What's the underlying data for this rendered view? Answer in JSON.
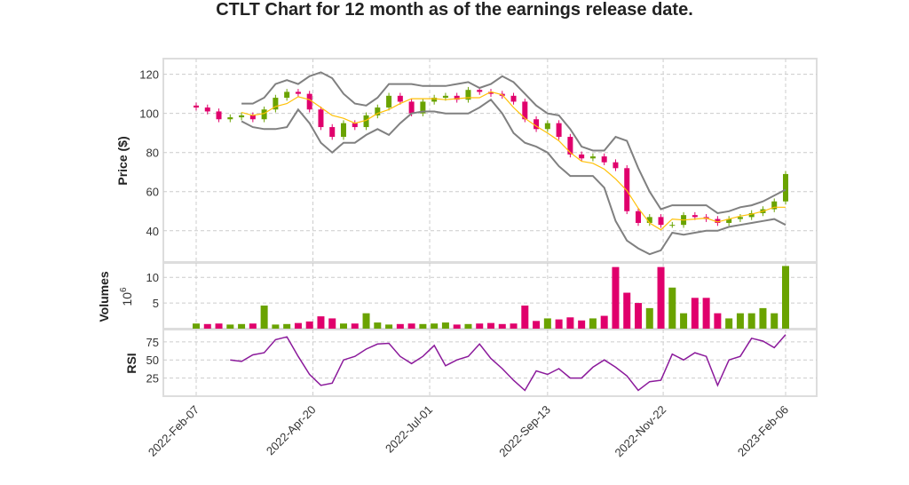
{
  "chart_data": {
    "type": "line",
    "title": "CTLT Chart for 12 month as of the earnings release date.",
    "xlabel": "",
    "x_ticks": [
      "2022-Feb-07",
      "2022-Apr-20",
      "2022-Jul-01",
      "2022-Sep-13",
      "2022-Nov-22",
      "2023-Feb-06"
    ],
    "x_tick_weeks": [
      0,
      10.3,
      20.6,
      31,
      41.2,
      52
    ],
    "price_panel": {
      "ylabel": "Price ($)",
      "ylim": [
        24,
        128
      ],
      "yticks": [
        "40",
        "60",
        "80",
        "100",
        "120"
      ],
      "close": [
        103,
        101,
        97,
        98,
        99,
        97,
        102,
        108,
        111,
        110,
        102,
        93,
        88,
        95,
        93,
        99,
        103,
        109,
        106,
        100,
        106,
        108,
        109,
        107,
        112,
        111,
        110,
        109,
        106,
        97,
        92,
        95,
        88,
        79,
        77,
        78,
        75,
        72,
        50,
        44,
        47,
        43,
        43,
        48,
        47,
        46,
        44,
        46,
        47,
        49,
        51,
        55,
        69
      ],
      "band_start_week": 4,
      "upper_band": [
        105,
        105,
        108,
        115,
        117,
        115,
        119,
        121,
        118,
        110,
        105,
        104,
        108,
        115,
        115,
        115,
        114,
        114,
        114,
        115,
        116,
        113,
        115,
        119,
        116,
        110,
        104,
        100,
        99,
        92,
        83,
        81,
        81,
        88,
        86,
        72,
        60,
        51,
        53,
        53,
        53,
        53,
        49,
        50,
        52,
        53,
        55,
        58,
        61
      ],
      "lower_band": [
        96,
        93,
        92,
        92,
        93,
        102,
        95,
        85,
        80,
        85,
        85,
        89,
        92,
        89,
        95,
        100,
        101,
        101,
        100,
        100,
        100,
        103,
        107,
        100,
        90,
        85,
        83,
        80,
        73,
        68,
        68,
        68,
        62,
        45,
        35,
        31,
        28,
        30,
        39,
        38,
        39,
        40,
        40,
        42,
        43,
        44,
        45,
        46,
        43
      ],
      "colors": {
        "up": "#6aa300",
        "down": "#e0006c",
        "band": "#808080",
        "sma": "#ffc107"
      }
    },
    "volume_panel": {
      "ylabel": "Volumes",
      "unit": "10",
      "unit_exp": "6",
      "yticks": [
        "5",
        "10"
      ],
      "ylim": [
        0,
        12.8
      ],
      "values": [
        1,
        0.9,
        1,
        0.8,
        0.9,
        1,
        4.5,
        0.8,
        0.9,
        1.1,
        1.4,
        2.4,
        2,
        1,
        1,
        3,
        1.2,
        0.8,
        0.9,
        1,
        0.9,
        1,
        1.2,
        0.8,
        0.9,
        1,
        1.1,
        0.9,
        1,
        4.5,
        1.5,
        2,
        1.8,
        2.2,
        1.6,
        2,
        2.5,
        12,
        7,
        5,
        4,
        12,
        8,
        3,
        6,
        6,
        3,
        2,
        3,
        3,
        4,
        3,
        12.2
      ]
    },
    "rsi_panel": {
      "ylabel": "RSI",
      "yticks": [
        "25",
        "50",
        "75"
      ],
      "ylim": [
        0,
        92
      ],
      "start_week": 3,
      "values": [
        50,
        48,
        57,
        60,
        78,
        82,
        55,
        30,
        15,
        18,
        50,
        55,
        65,
        72,
        73,
        55,
        45,
        55,
        70,
        42,
        50,
        55,
        72,
        52,
        38,
        22,
        8,
        35,
        30,
        38,
        25,
        25,
        40,
        50,
        40,
        28,
        8,
        20,
        22,
        58,
        50,
        60,
        55,
        15,
        50,
        55,
        80,
        76,
        67,
        85
      ],
      "color": "#8b1a9b"
    }
  }
}
